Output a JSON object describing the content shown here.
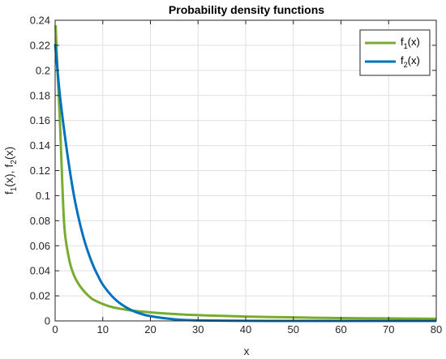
{
  "chart_data": {
    "type": "line",
    "title": "Probability density functions",
    "xlabel": "x",
    "ylabel": {
      "base": "f",
      "subs": [
        "1",
        "2"
      ],
      "arg": "(x)",
      "sep": ", "
    },
    "xlim": [
      0,
      80
    ],
    "ylim": [
      0,
      0.24
    ],
    "xticks": [
      0,
      10,
      20,
      30,
      40,
      50,
      60,
      70,
      80
    ],
    "yticks": [
      0,
      0.02,
      0.04,
      0.06,
      0.08,
      0.1,
      0.12,
      0.14,
      0.16,
      0.18,
      0.2,
      0.22,
      0.24
    ],
    "xtick_labels": [
      "0",
      "10",
      "20",
      "30",
      "40",
      "50",
      "60",
      "70",
      "80"
    ],
    "ytick_labels": [
      "0",
      "0.02",
      "0.04",
      "0.06",
      "0.08",
      "0.1",
      "0.12",
      "0.14",
      "0.16",
      "0.18",
      "0.2",
      "0.22",
      "0.24"
    ],
    "grid": true,
    "legend_position": "top-right",
    "series": [
      {
        "name": "f1(x)",
        "label_base": "f",
        "label_sub": "1",
        "label_arg": "(x)",
        "color": "#77ac30",
        "x": [
          0.1,
          0.5,
          1,
          1.5,
          2,
          3,
          4,
          5,
          6,
          7,
          8,
          10,
          12,
          14,
          16,
          20,
          25,
          30,
          40,
          50,
          60,
          70,
          80
        ],
        "y": [
          0.236,
          0.2,
          0.16,
          0.11,
          0.072,
          0.048,
          0.036,
          0.029,
          0.024,
          0.02,
          0.017,
          0.0135,
          0.011,
          0.0095,
          0.0083,
          0.0068,
          0.0055,
          0.0046,
          0.0035,
          0.0028,
          0.0023,
          0.002,
          0.0017
        ]
      },
      {
        "name": "f2(x)",
        "label_base": "f",
        "label_sub": "2",
        "label_arg": "(x)",
        "color": "#0072bd",
        "x": [
          0,
          1,
          2,
          3,
          4,
          5,
          6,
          7,
          8,
          9,
          10,
          12,
          14,
          16,
          18,
          20,
          25,
          30,
          40,
          50,
          60,
          70,
          80
        ],
        "y": [
          0.221,
          0.18,
          0.149,
          0.122,
          0.099,
          0.081,
          0.066,
          0.054,
          0.044,
          0.036,
          0.029,
          0.0195,
          0.013,
          0.0086,
          0.0057,
          0.0038,
          0.0013,
          0.0004,
          5e-05,
          0,
          0,
          0,
          0
        ]
      }
    ]
  }
}
